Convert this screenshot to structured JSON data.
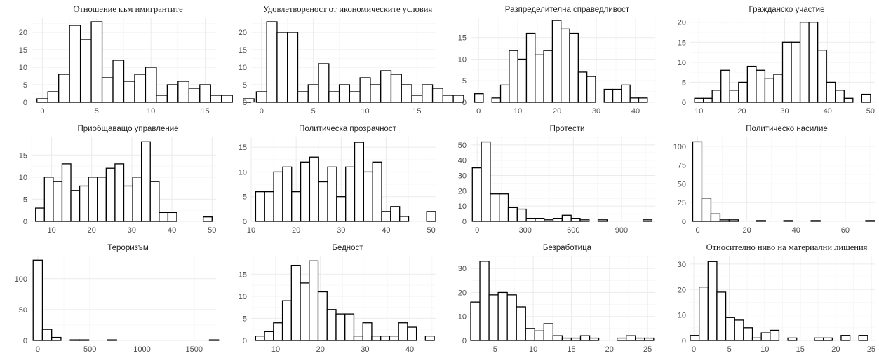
{
  "chart_data": [
    {
      "type": "bar",
      "title": "Отношение към имигрантите",
      "title_font": "serif",
      "bins_start": -0.5,
      "bin_width": 1,
      "values": [
        1,
        3,
        8,
        22,
        18,
        23,
        7,
        12,
        6,
        8,
        10,
        2,
        5,
        6,
        4,
        5,
        2,
        2,
        0,
        1
      ],
      "xlim": [
        -1,
        16
      ],
      "ylim": [
        0,
        24
      ],
      "xticks": [
        0,
        5,
        10,
        15
      ],
      "yticks": [
        0,
        5,
        10,
        15,
        20
      ]
    },
    {
      "type": "bar",
      "title": "Удовлетвореност от икономическите условия",
      "title_font": "serif",
      "bins_start": -0.5,
      "bin_width": 1,
      "values": [
        3,
        23,
        20,
        20,
        3,
        5,
        11,
        3,
        5,
        3,
        7,
        5,
        9,
        8,
        5,
        2,
        5,
        4,
        2,
        2
      ],
      "xlim": [
        -1,
        16.8
      ],
      "ylim": [
        0,
        24
      ],
      "xticks": [
        0,
        5,
        10,
        15
      ],
      "yticks": [
        0,
        5,
        10,
        15,
        20
      ]
    },
    {
      "type": "bar",
      "title": "Разпределителна справедливост",
      "title_font": "sans",
      "bins_start": -1,
      "bin_width": 2.2,
      "values": [
        2,
        0,
        1,
        4,
        12,
        10,
        16,
        11,
        12,
        19,
        17,
        16,
        7,
        6,
        0,
        3,
        3,
        4,
        1,
        1
      ],
      "xlim": [
        -2,
        45
      ],
      "ylim": [
        0,
        19.5
      ],
      "xticks": [
        0,
        10,
        20,
        30,
        40
      ],
      "yticks": [
        0,
        5,
        10,
        15
      ],
      "yticklabels": [
        "0",
        "5",
        "10",
        "15"
      ]
    },
    {
      "type": "bar",
      "title": "Гражданско участие",
      "title_font": "sans",
      "bins_start": 9,
      "bin_width": 2.05,
      "values": [
        1,
        1,
        3,
        8,
        3,
        5,
        9,
        8,
        6,
        7,
        15,
        15,
        20,
        20,
        13,
        5,
        3,
        1,
        0,
        2
      ],
      "xlim": [
        8,
        51
      ],
      "ylim": [
        0,
        21
      ],
      "xticks": [
        10,
        20,
        30,
        40,
        50
      ],
      "yticks": [
        0,
        5,
        10,
        15,
        20
      ]
    },
    {
      "type": "bar",
      "title": "Приобщаващо управление",
      "title_font": "sans",
      "bins_start": 6,
      "bin_width": 2.2,
      "values": [
        3,
        10,
        9,
        13,
        7,
        8,
        10,
        10,
        12,
        13,
        8,
        10,
        18,
        9,
        2,
        2,
        0,
        0,
        0,
        1
      ],
      "xlim": [
        5,
        51
      ],
      "ylim": [
        0,
        19
      ],
      "xticks": [
        10,
        20,
        30,
        40,
        50
      ],
      "yticks": [
        0,
        5,
        10,
        15
      ]
    },
    {
      "type": "bar",
      "title": "Политическа прозрачност",
      "title_font": "sans",
      "bins_start": 11,
      "bin_width": 2,
      "values": [
        6,
        6,
        10,
        11,
        6,
        12,
        13,
        8,
        11,
        5,
        11,
        16,
        10,
        12,
        2,
        3,
        1,
        0,
        0,
        2
      ],
      "xlim": [
        10,
        51
      ],
      "ylim": [
        0,
        17
      ],
      "xticks": [
        10,
        20,
        30,
        40,
        50
      ],
      "yticks": [
        0,
        5,
        10,
        15
      ]
    },
    {
      "type": "bar",
      "title": "Протести",
      "title_font": "sans",
      "bins_start": -30,
      "bin_width": 56,
      "values": [
        35,
        52,
        18,
        18,
        9,
        8,
        2,
        2,
        1,
        2,
        4,
        2,
        1,
        0,
        1,
        0,
        0,
        0,
        0,
        1
      ],
      "xlim": [
        -40,
        1110
      ],
      "ylim": [
        0,
        55
      ],
      "xticks": [
        0,
        300,
        600,
        900
      ],
      "yticks": [
        0,
        10,
        20,
        30,
        40,
        50
      ]
    },
    {
      "type": "bar",
      "title": "Политическо насилие",
      "title_font": "sans",
      "bins_start": -2,
      "bin_width": 3.7,
      "values": [
        106,
        31,
        10,
        2,
        2,
        0,
        0,
        1,
        0,
        0,
        1,
        0,
        0,
        1,
        0,
        0,
        0,
        0,
        0,
        1
      ],
      "xlim": [
        -3,
        72
      ],
      "ylim": [
        0,
        112
      ],
      "xticks": [
        0,
        20,
        40,
        60
      ],
      "yticks": [
        0,
        25,
        50,
        75,
        100
      ]
    },
    {
      "type": "bar",
      "title": "Тероризъм",
      "title_font": "sans",
      "bins_start": -45,
      "bin_width": 89,
      "values": [
        130,
        18,
        5,
        0,
        1,
        1,
        0,
        0,
        1,
        0,
        0,
        0,
        0,
        0,
        0,
        0,
        0,
        0,
        0,
        1
      ],
      "xlim": [
        -60,
        1710
      ],
      "ylim": [
        0,
        136
      ],
      "xticks": [
        0,
        500,
        1000,
        1500
      ],
      "yticks": [
        0,
        50,
        100
      ]
    },
    {
      "type": "bar",
      "title": "Бедност",
      "title_font": "sans",
      "bins_start": 5.5,
      "bin_width": 2,
      "values": [
        1,
        2,
        4,
        9,
        17,
        13,
        18,
        11,
        7,
        6,
        6,
        1,
        4,
        1,
        1,
        1,
        4,
        3,
        0,
        1
      ],
      "xlim": [
        4.5,
        45.8
      ],
      "ylim": [
        0,
        19
      ],
      "xticks": [
        10,
        20,
        30,
        40
      ],
      "yticks": [
        0,
        5,
        10,
        15
      ]
    },
    {
      "type": "bar",
      "title": "Безработица",
      "title_font": "sans",
      "bins_start": 1.8,
      "bin_width": 1.2,
      "values": [
        16,
        33,
        19,
        20,
        19,
        14,
        5,
        4,
        7,
        2,
        1,
        1,
        2,
        1,
        0,
        0,
        1,
        2,
        1,
        1
      ],
      "xlim": [
        1.8,
        26
      ],
      "ylim": [
        0,
        35
      ],
      "xticks": [
        5,
        10,
        15,
        20,
        25
      ],
      "yticks": [
        0,
        10,
        20,
        30
      ]
    },
    {
      "type": "bar",
      "title": "Относително ниво на материални лишения",
      "title_font": "serif",
      "bins_start": -0.5,
      "bin_width": 1.25,
      "values": [
        2,
        21,
        31,
        19,
        9,
        8,
        5,
        1,
        3,
        4,
        0,
        1,
        0,
        0,
        1,
        1,
        0,
        2,
        0,
        2
      ],
      "xlim": [
        -0.5,
        25.5
      ],
      "ylim": [
        0,
        33
      ],
      "xticks": [
        0,
        5,
        10,
        15,
        20,
        25
      ],
      "yticks": [
        0,
        10,
        20,
        30
      ]
    }
  ]
}
